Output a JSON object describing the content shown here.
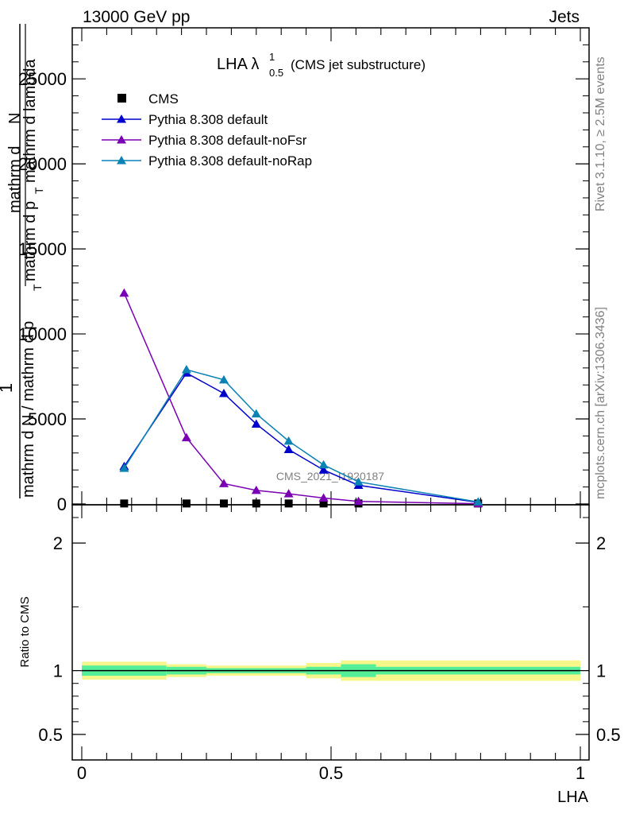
{
  "header": {
    "left": "13000 GeV pp",
    "right": "Jets"
  },
  "side": {
    "rivet": "Rivet 3.1.10, ≥ 2.5M events",
    "mcplots": "mcplots.cern.ch [arXiv:1306.3436]"
  },
  "plot_title": {
    "main": "LHA λ",
    "sup": "1",
    "sub": "0.5",
    "paren": "(CMS jet substructure)"
  },
  "watermark": "CMS_2021_I1920187",
  "colors": {
    "cms": "#000000",
    "default": "#0000cc",
    "noFsr": "#7a00b4",
    "noRap": "#0a82b4",
    "band_inner": "#55ee99",
    "band_outer": "#f6f68a"
  },
  "chart_data": [
    {
      "type": "line",
      "panel": "main",
      "ylabel_parts": [
        "1",
        "mathrm d N / mathrm d p",
        "T",
        "mathrm d N",
        "mathrm d p",
        "T",
        "mathrm d lambda"
      ],
      "ylabel_fraction": {
        "numerator_top": "mathrm d",
        "numerator_N": "N",
        "denominator_line1": "mathrm d p",
        "denominator_line1_sub": "T",
        "denominator_line1_tail": "mathrm d lambda",
        "outer_numerator": "1",
        "outer_denominator": "mathrm d N / mathrm d p",
        "outer_denominator_sub": "T",
        "outer_extra": "mathrm d p"
      },
      "xlim": [
        0,
        1
      ],
      "ylim": [
        0,
        28000
      ],
      "yticks": [
        0,
        5000,
        10000,
        15000,
        20000,
        25000
      ],
      "ytick_labels": [
        "0",
        "5000",
        "10000",
        "15000",
        "20000",
        "25000"
      ],
      "x": [
        0.085,
        0.21,
        0.285,
        0.35,
        0.415,
        0.485,
        0.555,
        0.795
      ],
      "series": [
        {
          "name": "CMS",
          "marker": "square",
          "values": [
            30,
            30,
            30,
            30,
            30,
            30,
            30,
            30
          ]
        },
        {
          "name": "Pythia 8.308 default",
          "marker": "triangle",
          "values": [
            2200,
            7700,
            6500,
            4700,
            3200,
            2000,
            1100,
            100
          ]
        },
        {
          "name": "Pythia 8.308 default-noFsr",
          "marker": "triangle",
          "values": [
            12400,
            3900,
            1200,
            800,
            600,
            350,
            150,
            20
          ]
        },
        {
          "name": "Pythia 8.308 default-noRap",
          "marker": "triangle",
          "values": [
            2100,
            7900,
            7300,
            5300,
            3700,
            2300,
            1300,
            120
          ]
        }
      ],
      "legend": [
        "CMS",
        "Pythia 8.308 default",
        "Pythia 8.308 default-noFsr",
        "Pythia 8.308 default-noRap"
      ],
      "legend_position": "top-left"
    },
    {
      "type": "line",
      "panel": "ratio",
      "ylabel": "Ratio to CMS",
      "xlabel": "LHA",
      "xlim": [
        0,
        1
      ],
      "xticks": [
        0,
        0.5,
        1
      ],
      "xtick_labels": [
        "0",
        "0.5",
        "1"
      ],
      "yticks": [
        0.5,
        1,
        2
      ],
      "ytick_labels": [
        "0.5",
        "1",
        "2"
      ],
      "ylim": [
        0.3,
        2.3
      ],
      "reference_line": 1,
      "band_bins": [
        0,
        0.17,
        0.25,
        0.45,
        0.52,
        0.59,
        1
      ],
      "band_outer": [
        0.07,
        0.05,
        0.04,
        0.06,
        0.08,
        0.08
      ],
      "band_inner": [
        0.04,
        0.03,
        0.02,
        0.03,
        0.05,
        0.03
      ]
    }
  ]
}
